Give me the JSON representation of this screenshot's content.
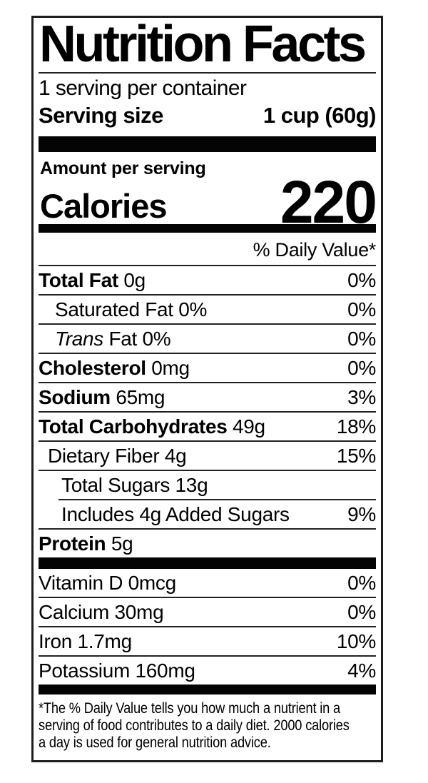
{
  "label": {
    "title": "Nutrition Facts",
    "servings_per_container": "1 serving per container",
    "serving_size_label": "Serving size",
    "serving_size_value": "1 cup (60g)",
    "amount_per_serving": "Amount per serving",
    "calories_label": "Calories",
    "calories_value": "220",
    "daily_value_header": "% Daily Value*",
    "rows": [
      {
        "bold": "Total Fat",
        "rest": " 0g",
        "value": "0%"
      },
      {
        "rest": "Saturated Fat 0%",
        "value": "0%"
      },
      {
        "italic": "Trans",
        "rest": " Fat 0%",
        "value": "0%"
      },
      {
        "bold": "Cholesterol",
        "rest": " 0mg",
        "value": "0%"
      },
      {
        "bold": "Sodium",
        "rest": " 65mg",
        "value": "3%"
      },
      {
        "bold": "Total Carbohydrates",
        "rest": " 49g",
        "value": "18%"
      },
      {
        "rest": "Dietary Fiber 4g",
        "value": "15%"
      },
      {
        "rest": "Total Sugars 13g",
        "value": ""
      },
      {
        "rest": "Includes 4g Added Sugars",
        "value": "9%"
      },
      {
        "bold": "Protein",
        "rest": " 5g",
        "value": ""
      }
    ],
    "vitamin_rows": [
      {
        "rest": "Vitamin D 0mcg",
        "value": "0%"
      },
      {
        "rest": "Calcium 30mg",
        "value": "0%"
      },
      {
        "rest": "Iron 1.7mg",
        "value": "10%"
      },
      {
        "rest": "Potassium 160mg",
        "value": "4%"
      }
    ],
    "footnote": "*The % Daily Value tells you how much a nutrient in a\nserving of food contributes to a daily diet. 2000 calories\na day is used for general nutrition advice.",
    "colors": {
      "ink": "#000000",
      "background": "#ffffff"
    }
  }
}
